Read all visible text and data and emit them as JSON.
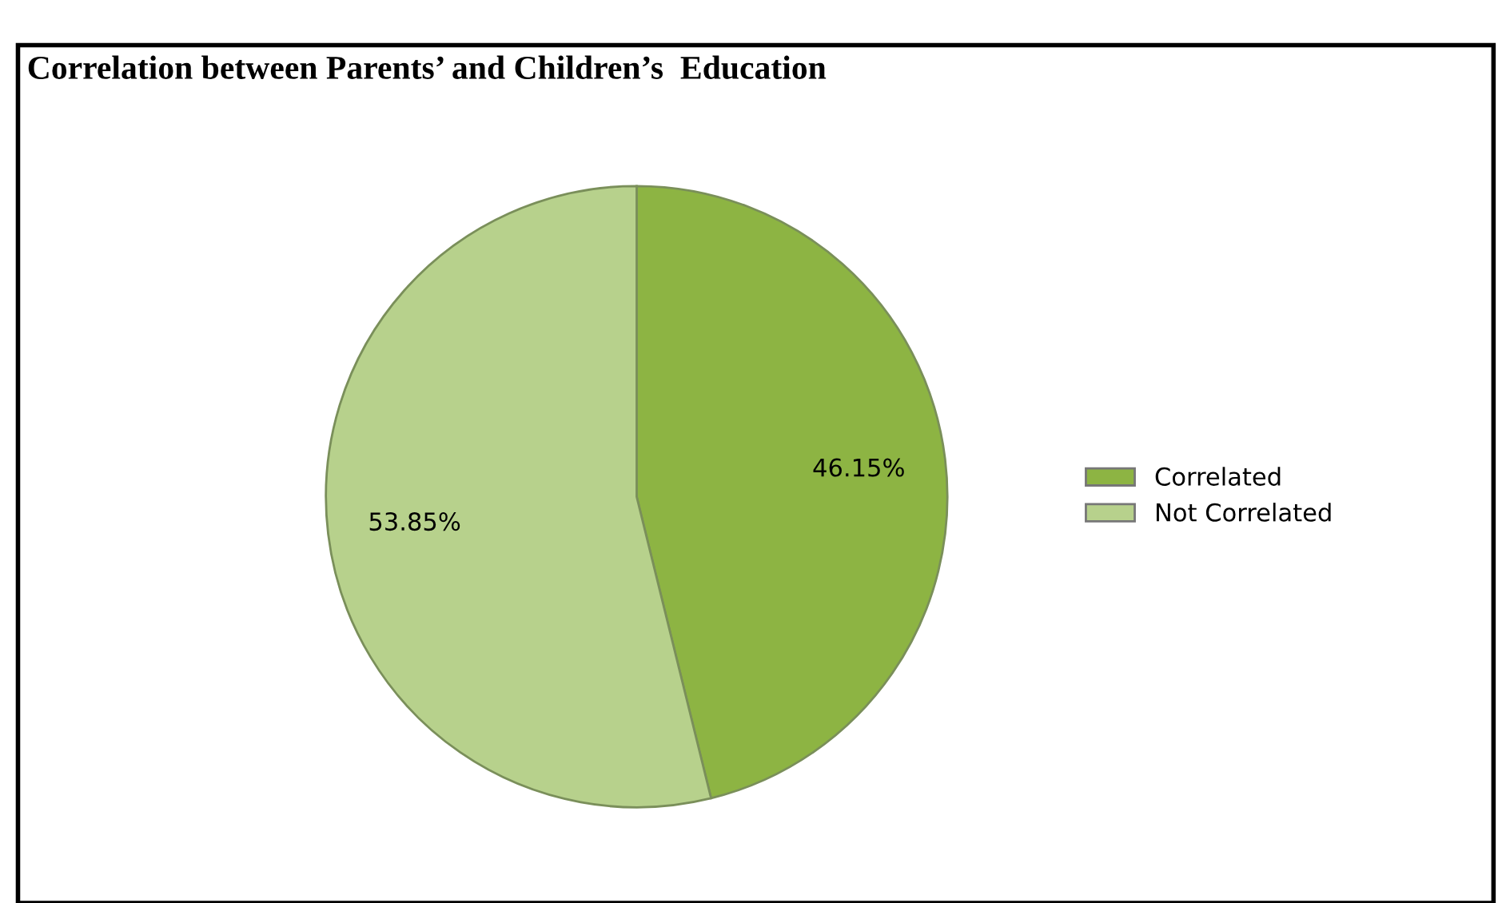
{
  "chart_data": {
    "type": "pie",
    "title": "Correlation between Parents’ and Children’s  Education",
    "categories": [
      "Correlated",
      "Not Correlated"
    ],
    "values": [
      46.15,
      53.85
    ],
    "colors": [
      "#8db443",
      "#b7d18c"
    ],
    "value_labels": [
      "46.15%",
      "53.85%"
    ],
    "legend": "right"
  }
}
